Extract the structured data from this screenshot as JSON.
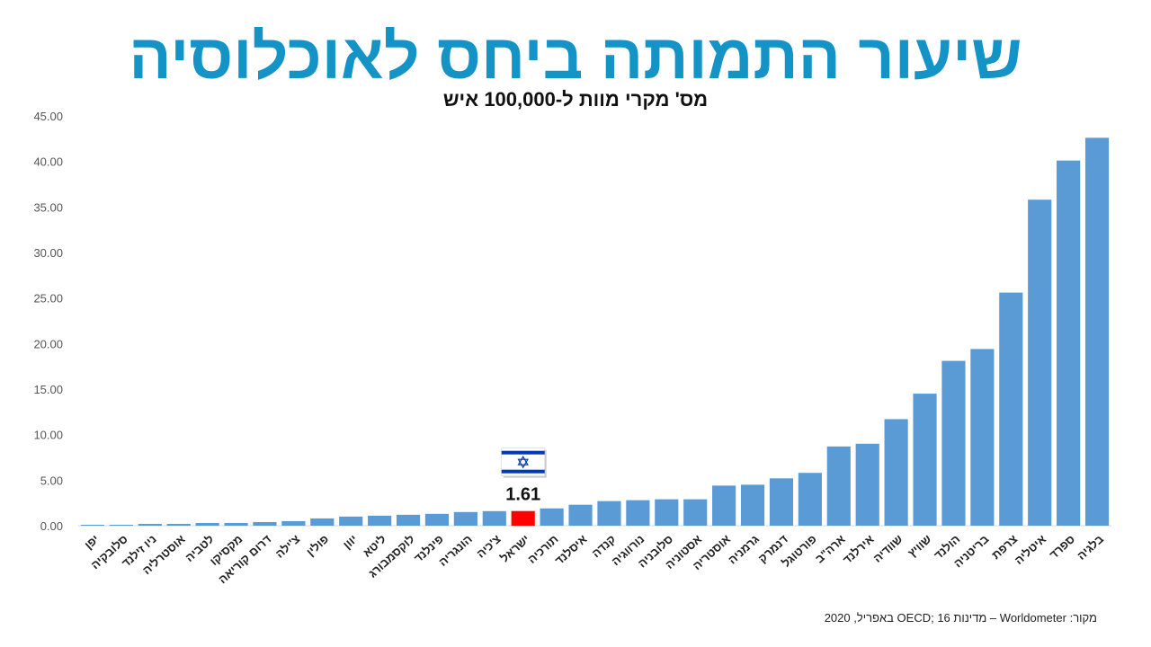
{
  "header": {
    "title": "שיעור התמותה ביחס לאוכלוסיה",
    "subtitle": "מס' מקרי מוות ל-100,000 איש"
  },
  "source": "מקור: Worldometer – מדינות OECD; 16 באפריל, 2020",
  "colors": {
    "bar": "#5b9bd5",
    "highlight": "#ff0000",
    "title": "#1493c6",
    "flag_blue": "#0038b8"
  },
  "chart_data": {
    "type": "bar",
    "ylim": [
      0,
      45
    ],
    "yticks": [
      "0.00",
      "5.00",
      "10.00",
      "15.00",
      "20.00",
      "25.00",
      "30.00",
      "35.00",
      "40.00",
      "45.00"
    ],
    "grid": false,
    "categories": [
      "יפן",
      "סלובקיה",
      "ניו זילנד",
      "אוסטרליה",
      "לטביה",
      "מקסיקו",
      "דרום קוריאה",
      "צ'ילה",
      "פולין",
      "יוון",
      "ליטא",
      "לוקסמבורג",
      "פינלנד",
      "הונגריה",
      "צ'כיה",
      "ישראל",
      "תורכיה",
      "איסלנד",
      "קנדה",
      "נורווגיה",
      "סלובניה",
      "אסטוניה",
      "אוסטריה",
      "גרמניה",
      "דנמרק",
      "פורטוגל",
      "ארה\"ב",
      "אירלנד",
      "שוודיה",
      "שוויץ",
      "הולנד",
      "בריטניה",
      "צרפת",
      "איטליה",
      "ספרד",
      "בלגיה"
    ],
    "values": [
      0.1,
      0.1,
      0.2,
      0.2,
      0.3,
      0.3,
      0.4,
      0.5,
      0.8,
      1.0,
      1.1,
      1.2,
      1.3,
      1.5,
      1.6,
      1.61,
      1.9,
      2.3,
      2.7,
      2.8,
      2.9,
      2.9,
      4.4,
      4.5,
      5.2,
      5.8,
      8.7,
      9.0,
      11.7,
      14.5,
      18.1,
      19.4,
      25.6,
      35.8,
      40.1,
      42.6
    ],
    "highlight": {
      "category": "ישראל",
      "label": "1.61",
      "icon": "israel-flag-icon"
    }
  }
}
